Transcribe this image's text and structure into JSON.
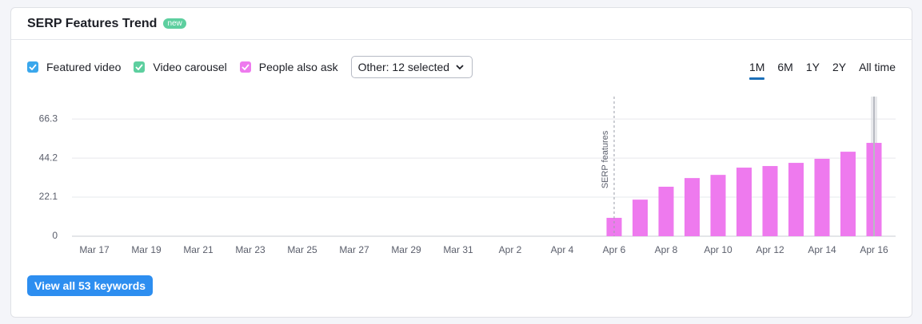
{
  "header": {
    "title": "SERP Features Trend",
    "badge": "new"
  },
  "filter": {
    "dropdown": "Other: 12 selected"
  },
  "periods": {
    "options": [
      "1M",
      "6M",
      "1Y",
      "2Y",
      "All time"
    ],
    "selected": 0
  },
  "button": "View all 53 keywords",
  "chart_data": {
    "type": "bar",
    "categories": [
      "Mar 17",
      null,
      "Mar 19",
      null,
      "Mar 21",
      null,
      "Mar 23",
      null,
      "Mar 25",
      null,
      "Mar 27",
      null,
      "Mar 29",
      null,
      "Mar 31",
      null,
      "Apr 2",
      null,
      "Apr 4",
      null,
      "Apr 6",
      null,
      "Apr 8",
      null,
      "Apr 10",
      null,
      "Apr 12",
      null,
      "Apr 14",
      null,
      "Apr 16"
    ],
    "series": [
      {
        "name": "Featured video",
        "color": "#3aa7ec",
        "values": [
          null,
          null,
          null,
          null,
          null,
          null,
          null,
          null,
          null,
          null,
          null,
          null,
          null,
          null,
          null,
          null,
          null,
          null,
          null,
          null,
          null,
          null,
          null,
          null,
          null,
          null,
          null,
          null,
          null,
          null,
          null
        ]
      },
      {
        "name": "Video carousel",
        "color": "#5dcf9f",
        "values": [
          null,
          null,
          null,
          null,
          null,
          null,
          null,
          null,
          null,
          null,
          null,
          null,
          null,
          null,
          null,
          null,
          null,
          null,
          null,
          null,
          null,
          null,
          null,
          null,
          null,
          null,
          null,
          null,
          null,
          null,
          null
        ]
      },
      {
        "name": "People also ask",
        "color": "#ee7aee",
        "values": [
          null,
          null,
          null,
          null,
          null,
          null,
          null,
          null,
          null,
          null,
          null,
          null,
          null,
          null,
          null,
          null,
          null,
          null,
          null,
          null,
          10.4,
          20.7,
          28,
          32.9,
          34.7,
          38.8,
          39.7,
          41.5,
          43.8,
          47.8,
          52.8
        ]
      }
    ],
    "ylim": [
      0,
      79
    ],
    "yticks": [
      0,
      22.1,
      44.2,
      66.3
    ],
    "grid": true,
    "annotations": [
      {
        "text": "SERP features",
        "x": "Apr 6"
      }
    ]
  }
}
